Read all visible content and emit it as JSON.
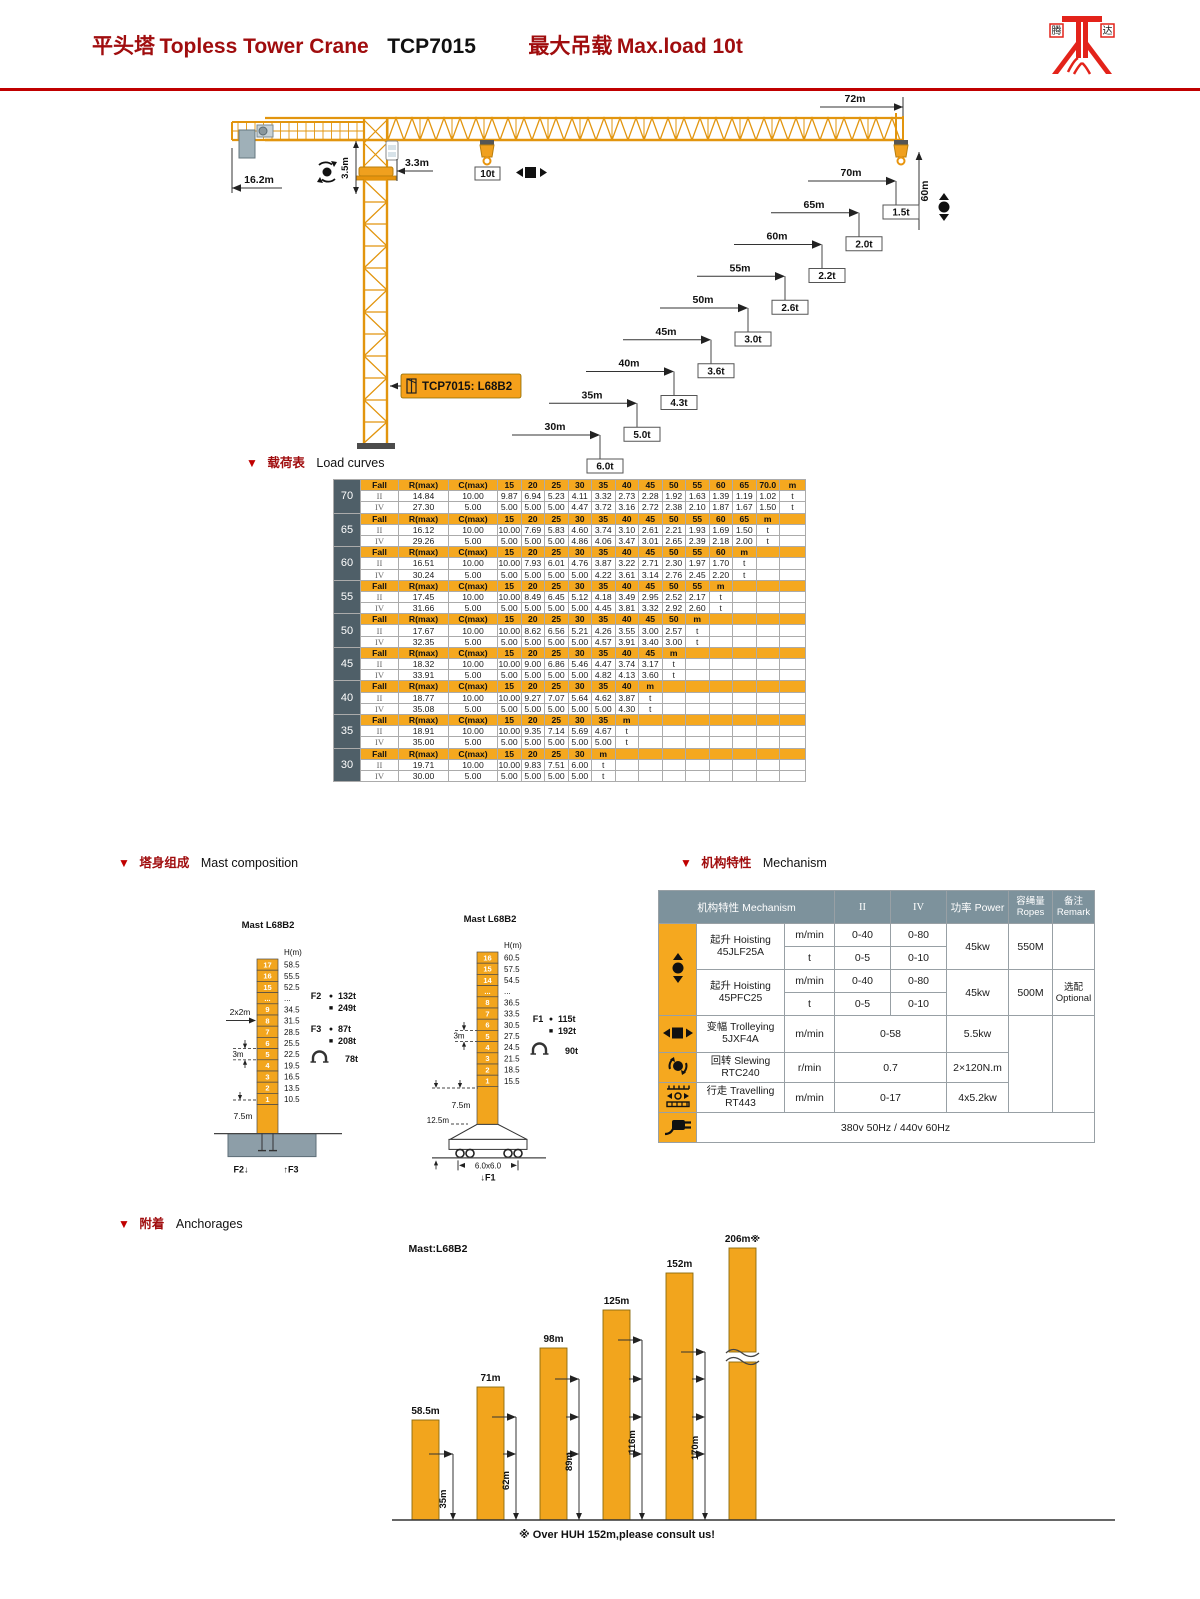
{
  "header": {
    "title_zh": "平头塔",
    "title_en": "Topless Tower Crane",
    "model": "TCP7015",
    "maxload_zh": "最大吊载",
    "maxload_en": "Max.load 10t",
    "logo_char_left": "腾",
    "logo_char_right": "达",
    "accent_color": "#A00D0E",
    "rule_color": "#C00000",
    "orange": "#F5A81F"
  },
  "crane": {
    "jib_length": "72m",
    "counter_jib": "16.2m",
    "head_height": "3.5m",
    "cab_offset": "3.3m",
    "hook_range": "60m",
    "max_load": "10t",
    "model_label": "TCP7015: L68B2",
    "steps": [
      {
        "radius": "70m",
        "load": "1.5t"
      },
      {
        "radius": "65m",
        "load": "2.0t"
      },
      {
        "radius": "60m",
        "load": "2.2t"
      },
      {
        "radius": "55m",
        "load": "2.6t"
      },
      {
        "radius": "50m",
        "load": "3.0t"
      },
      {
        "radius": "45m",
        "load": "3.6t"
      },
      {
        "radius": "40m",
        "load": "4.3t"
      },
      {
        "radius": "35m",
        "load": "5.0t"
      },
      {
        "radius": "30m",
        "load": "6.0t"
      }
    ]
  },
  "load_curves": {
    "section_zh": "载荷表",
    "section_en": "Load curves",
    "col_fall": "Fall",
    "col_rmax": "R(max)",
    "col_cmax": "C(max)",
    "unit_m": "m",
    "unit_t": "t",
    "row_labels": [
      "II",
      "IV"
    ],
    "blocks": [
      {
        "jib": "70",
        "radii": [
          "15",
          "20",
          "25",
          "30",
          "35",
          "40",
          "45",
          "50",
          "55",
          "60",
          "65",
          "70.0"
        ],
        "II": {
          "rmax": "14.84",
          "cmax": "10.00",
          "vals": [
            "9.87",
            "6.94",
            "5.23",
            "4.11",
            "3.32",
            "2.73",
            "2.28",
            "1.92",
            "1.63",
            "1.39",
            "1.19",
            "1.02"
          ]
        },
        "IV": {
          "rmax": "27.30",
          "cmax": "5.00",
          "vals": [
            "5.00",
            "5.00",
            "5.00",
            "4.47",
            "3.72",
            "3.16",
            "2.72",
            "2.38",
            "2.10",
            "1.87",
            "1.67",
            "1.50"
          ]
        }
      },
      {
        "jib": "65",
        "radii": [
          "15",
          "20",
          "25",
          "30",
          "35",
          "40",
          "45",
          "50",
          "55",
          "60",
          "65"
        ],
        "II": {
          "rmax": "16.12",
          "cmax": "10.00",
          "vals": [
            "10.00",
            "7.69",
            "5.83",
            "4.60",
            "3.74",
            "3.10",
            "2.61",
            "2.21",
            "1.93",
            "1.69",
            "1.50"
          ]
        },
        "IV": {
          "rmax": "29.26",
          "cmax": "5.00",
          "vals": [
            "5.00",
            "5.00",
            "5.00",
            "4.86",
            "4.06",
            "3.47",
            "3.01",
            "2.65",
            "2.39",
            "2.18",
            "2.00"
          ]
        }
      },
      {
        "jib": "60",
        "radii": [
          "15",
          "20",
          "25",
          "30",
          "35",
          "40",
          "45",
          "50",
          "55",
          "60"
        ],
        "II": {
          "rmax": "16.51",
          "cmax": "10.00",
          "vals": [
            "10.00",
            "7.93",
            "6.01",
            "4.76",
            "3.87",
            "3.22",
            "2.71",
            "2.30",
            "1.97",
            "1.70"
          ]
        },
        "IV": {
          "rmax": "30.24",
          "cmax": "5.00",
          "vals": [
            "5.00",
            "5.00",
            "5.00",
            "5.00",
            "4.22",
            "3.61",
            "3.14",
            "2.76",
            "2.45",
            "2.20"
          ]
        }
      },
      {
        "jib": "55",
        "radii": [
          "15",
          "20",
          "25",
          "30",
          "35",
          "40",
          "45",
          "50",
          "55"
        ],
        "II": {
          "rmax": "17.45",
          "cmax": "10.00",
          "vals": [
            "10.00",
            "8.49",
            "6.45",
            "5.12",
            "4.18",
            "3.49",
            "2.95",
            "2.52",
            "2.17"
          ]
        },
        "IV": {
          "rmax": "31.66",
          "cmax": "5.00",
          "vals": [
            "5.00",
            "5.00",
            "5.00",
            "5.00",
            "4.45",
            "3.81",
            "3.32",
            "2.92",
            "2.60"
          ]
        }
      },
      {
        "jib": "50",
        "radii": [
          "15",
          "20",
          "25",
          "30",
          "35",
          "40",
          "45",
          "50"
        ],
        "II": {
          "rmax": "17.67",
          "cmax": "10.00",
          "vals": [
            "10.00",
            "8.62",
            "6.56",
            "5.21",
            "4.26",
            "3.55",
            "3.00",
            "2.57"
          ]
        },
        "IV": {
          "rmax": "32.35",
          "cmax": "5.00",
          "vals": [
            "5.00",
            "5.00",
            "5.00",
            "5.00",
            "4.57",
            "3.91",
            "3.40",
            "3.00"
          ]
        }
      },
      {
        "jib": "45",
        "radii": [
          "15",
          "20",
          "25",
          "30",
          "35",
          "40",
          "45"
        ],
        "II": {
          "rmax": "18.32",
          "cmax": "10.00",
          "vals": [
            "10.00",
            "9.00",
            "6.86",
            "5.46",
            "4.47",
            "3.74",
            "3.17"
          ]
        },
        "IV": {
          "rmax": "33.91",
          "cmax": "5.00",
          "vals": [
            "5.00",
            "5.00",
            "5.00",
            "5.00",
            "4.82",
            "4.13",
            "3.60"
          ]
        }
      },
      {
        "jib": "40",
        "radii": [
          "15",
          "20",
          "25",
          "30",
          "35",
          "40"
        ],
        "II": {
          "rmax": "18.77",
          "cmax": "10.00",
          "vals": [
            "10.00",
            "9.27",
            "7.07",
            "5.64",
            "4.62",
            "3.87"
          ]
        },
        "IV": {
          "rmax": "35.08",
          "cmax": "5.00",
          "vals": [
            "5.00",
            "5.00",
            "5.00",
            "5.00",
            "5.00",
            "4.30"
          ]
        }
      },
      {
        "jib": "35",
        "radii": [
          "15",
          "20",
          "25",
          "30",
          "35"
        ],
        "II": {
          "rmax": "18.91",
          "cmax": "10.00",
          "vals": [
            "10.00",
            "9.35",
            "7.14",
            "5.69",
            "4.67"
          ]
        },
        "IV": {
          "rmax": "35.00",
          "cmax": "5.00",
          "vals": [
            "5.00",
            "5.00",
            "5.00",
            "5.00",
            "5.00"
          ]
        }
      },
      {
        "jib": "30",
        "radii": [
          "15",
          "20",
          "25",
          "30"
        ],
        "II": {
          "rmax": "19.71",
          "cmax": "10.00",
          "vals": [
            "10.00",
            "9.83",
            "7.51",
            "6.00"
          ]
        },
        "IV": {
          "rmax": "30.00",
          "cmax": "5.00",
          "vals": [
            "5.00",
            "5.00",
            "5.00",
            "5.00"
          ]
        }
      }
    ]
  },
  "mast_composition": {
    "section_zh": "塔身组成",
    "section_en": "Mast composition",
    "left": {
      "title": "Mast  L68B2",
      "h_label": "H(m)",
      "segments": [
        [
          "17",
          "58.5"
        ],
        [
          "16",
          "55.5"
        ],
        [
          "15",
          "52.5"
        ],
        [
          "...",
          "..."
        ],
        [
          "9",
          "34.5"
        ],
        [
          "8",
          "31.5"
        ],
        [
          "7",
          "28.5"
        ],
        [
          "6",
          "25.5"
        ],
        [
          "5",
          "22.5"
        ],
        [
          "4",
          "19.5"
        ],
        [
          "3",
          "16.5"
        ],
        [
          "2",
          "13.5"
        ],
        [
          "1",
          "10.5"
        ]
      ],
      "dim_section": "2x2m",
      "dim_cell": "3m",
      "dim_base": "7.5m",
      "f2_label": "F2",
      "f2_circle": "132t",
      "f2_square": "249t",
      "f3_label": "F3",
      "f3_circle": "87t",
      "f3_square": "208t",
      "arch_load": "78t",
      "foot_left": "F2↓",
      "foot_right": "↑F3"
    },
    "right": {
      "title": "Mast  L68B2",
      "h_label": "H(m)",
      "segments": [
        [
          "16",
          "60.5"
        ],
        [
          "15",
          "57.5"
        ],
        [
          "14",
          "54.5"
        ],
        [
          "...",
          "..."
        ],
        [
          "8",
          "36.5"
        ],
        [
          "7",
          "33.5"
        ],
        [
          "6",
          "30.5"
        ],
        [
          "5",
          "27.5"
        ],
        [
          "4",
          "24.5"
        ],
        [
          "3",
          "21.5"
        ],
        [
          "2",
          "18.5"
        ],
        [
          "1",
          "15.5"
        ]
      ],
      "dim_cell": "3m",
      "dim_base": "7.5m",
      "dim_under": "12.5m",
      "f1_label": "F1",
      "f1_circle": "115t",
      "f1_square": "192t",
      "arch_load": "90t",
      "track_dim": "6.0x6.0",
      "foot": "↓F1"
    }
  },
  "mechanism": {
    "section_zh": "机构特性",
    "section_en": "Mechanism",
    "header": {
      "name": "机构特性 Mechanism",
      "col_ii": "II",
      "col_iv": "IV",
      "power": "功率 Power",
      "ropes_zh": "容绳量",
      "ropes_en": "Ropes",
      "remark_zh": "备注",
      "remark_en": "Remark"
    },
    "hoist1": {
      "name": "起升 Hoisting",
      "model": "45JLF25A",
      "u1": "m/min",
      "a1": "0-40",
      "b1": "0-80",
      "u2": "t",
      "a2": "0-5",
      "b2": "0-10",
      "power": "45kw",
      "ropes": "550M",
      "remark": ""
    },
    "hoist2": {
      "name": "起升 Hoisting",
      "model": "45PFC25",
      "u1": "m/min",
      "a1": "0-40",
      "b1": "0-80",
      "u2": "t",
      "a2": "0-5",
      "b2": "0-10",
      "power": "45kw",
      "ropes": "500M",
      "remark_zh": "选配",
      "remark_en": "Optional"
    },
    "trolley": {
      "name": "变幅 Trolleying",
      "model": "5JXF4A",
      "unit": "m/min",
      "val": "0-58",
      "power": "5.5kw"
    },
    "slew": {
      "name": "回转 Slewing",
      "model": "RTC240",
      "unit": "r/min",
      "val": "0.7",
      "power": "2×120N.m"
    },
    "travel": {
      "name": "行走 Travelling",
      "model": "RT443",
      "unit": "m/min",
      "val": "0-17",
      "power": "4x5.2kw"
    },
    "power_supply": "380v 50Hz / 440v 60Hz"
  },
  "anchorage": {
    "section_zh": "附着",
    "section_en": "Anchorages",
    "title": "Mast:L68B2",
    "note": "※ Over HUH 152m,please consult us!",
    "bars": [
      {
        "height_label": "58.5m",
        "anchor_label": ""
      },
      {
        "height_label": "71m",
        "anchor_label": "35m"
      },
      {
        "height_label": "98m",
        "anchor_label": "62m"
      },
      {
        "height_label": "125m",
        "anchor_label": "89m"
      },
      {
        "height_label": "152m",
        "anchor_label": "116m"
      },
      {
        "height_label": "206m※",
        "anchor_label": "170m",
        "broken": true
      }
    ]
  }
}
